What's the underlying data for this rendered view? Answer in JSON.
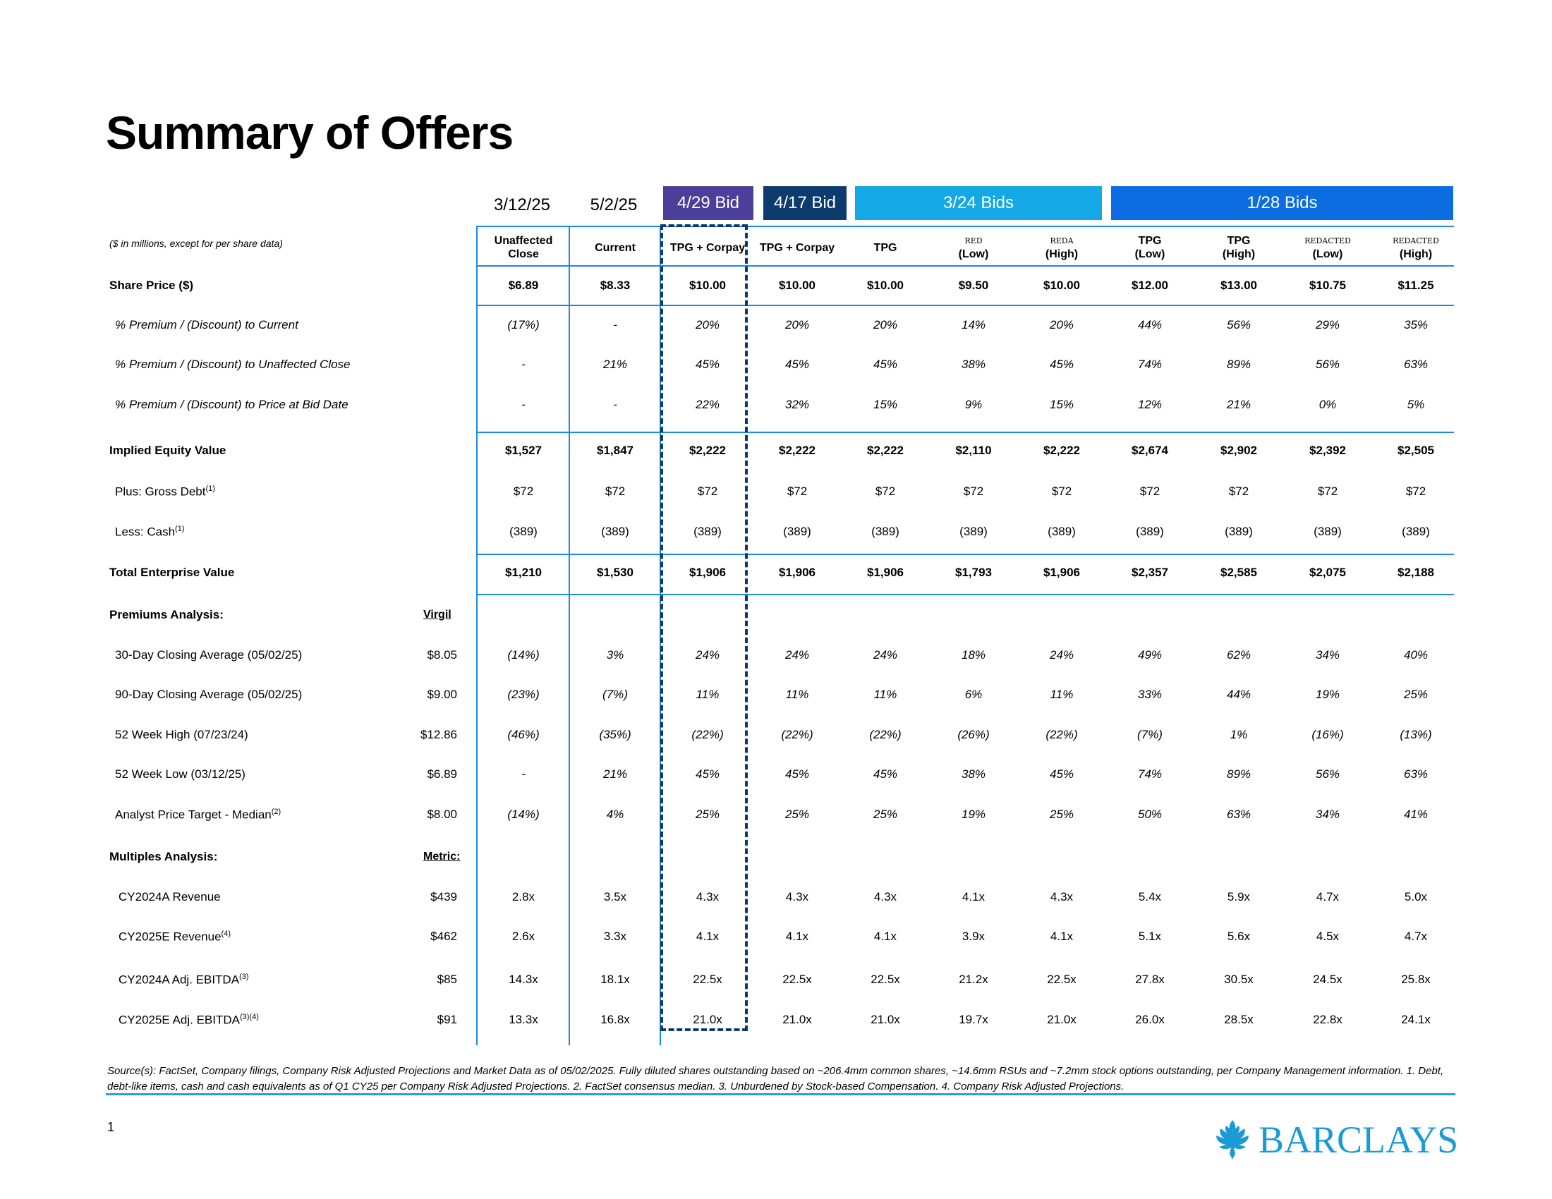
{
  "title": "Summary of Offers",
  "units_note": "($ in millions, except for per share data)",
  "header_groups": {
    "unaffected_date": "3/12/25",
    "current_date": "5/2/25",
    "bid_0429": "4/29 Bid",
    "bid_0417": "4/17 Bid",
    "bids_0324": "3/24 Bids",
    "bids_0128": "1/28 Bids"
  },
  "colors": {
    "bid_0429": "#4b3f9a",
    "bid_0417": "#0c3b6d",
    "bids_0324": "#14a8e6",
    "bids_0128": "#0c6de3",
    "rule": "#1a8be0",
    "brand": "#1b9ad6"
  },
  "columns": [
    {
      "line1": "Unaffected",
      "line2": "Close"
    },
    {
      "line1": "Current",
      "line2": ""
    },
    {
      "line1": "TPG + Corpay",
      "line2": ""
    },
    {
      "line1": "TPG + Corpay",
      "line2": ""
    },
    {
      "line1": "TPG",
      "line2": ""
    },
    {
      "line1": "RED",
      "line2": "(Low)"
    },
    {
      "line1": "REDA",
      "line2": "(High)"
    },
    {
      "line1": "TPG",
      "line2": "(Low)"
    },
    {
      "line1": "TPG",
      "line2": "(High)"
    },
    {
      "line1": "REDACTED",
      "line2": "(Low)"
    },
    {
      "line1": "REDACTED",
      "line2": "(High)"
    }
  ],
  "rows": {
    "share_price": {
      "label": "Share Price ($)",
      "values": [
        "$6.89",
        "$8.33",
        "$10.00",
        "$10.00",
        "$10.00",
        "$9.50",
        "$10.00",
        "$12.00",
        "$13.00",
        "$10.75",
        "$11.25"
      ]
    },
    "prem_current": {
      "label": "% Premium / (Discount) to Current",
      "values": [
        "(17%)",
        "-",
        "20%",
        "20%",
        "20%",
        "14%",
        "20%",
        "44%",
        "56%",
        "29%",
        "35%"
      ]
    },
    "prem_unaffected": {
      "label": "% Premium / (Discount) to Unaffected Close",
      "values": [
        "-",
        "21%",
        "45%",
        "45%",
        "45%",
        "38%",
        "45%",
        "74%",
        "89%",
        "56%",
        "63%"
      ]
    },
    "prem_bid_date": {
      "label": "% Premium / (Discount) to Price at Bid Date",
      "values": [
        "-",
        "-",
        "22%",
        "32%",
        "15%",
        "9%",
        "15%",
        "12%",
        "21%",
        "0%",
        "5%"
      ]
    },
    "equity_value": {
      "label": "Implied Equity Value",
      "values": [
        "$1,527",
        "$1,847",
        "$2,222",
        "$2,222",
        "$2,222",
        "$2,110",
        "$2,222",
        "$2,674",
        "$2,902",
        "$2,392",
        "$2,505"
      ]
    },
    "gross_debt": {
      "label": "Plus: Gross Debt",
      "sup": "(1)",
      "values": [
        "$72",
        "$72",
        "$72",
        "$72",
        "$72",
        "$72",
        "$72",
        "$72",
        "$72",
        "$72",
        "$72"
      ]
    },
    "cash": {
      "label": "Less: Cash",
      "sup": "(1)",
      "values": [
        "(389)",
        "(389)",
        "(389)",
        "(389)",
        "(389)",
        "(389)",
        "(389)",
        "(389)",
        "(389)",
        "(389)",
        "(389)"
      ]
    },
    "tev": {
      "label": "Total Enterprise Value",
      "values": [
        "$1,210",
        "$1,530",
        "$1,906",
        "$1,906",
        "$1,906",
        "$1,793",
        "$1,906",
        "$2,357",
        "$2,585",
        "$2,075",
        "$2,188"
      ]
    }
  },
  "premiums": {
    "label": "Premiums Analysis:",
    "metric_header": "Virgil",
    "rows": [
      {
        "label": "30-Day Closing Average (05/02/25)",
        "sup": "",
        "metric": "$8.05",
        "values": [
          "(14%)",
          "3%",
          "24%",
          "24%",
          "24%",
          "18%",
          "24%",
          "49%",
          "62%",
          "34%",
          "40%"
        ]
      },
      {
        "label": "90-Day Closing Average (05/02/25)",
        "sup": "",
        "metric": "$9.00",
        "values": [
          "(23%)",
          "(7%)",
          "11%",
          "11%",
          "11%",
          "6%",
          "11%",
          "33%",
          "44%",
          "19%",
          "25%"
        ]
      },
      {
        "label": "52 Week High (07/23/24)",
        "sup": "",
        "metric": "$12.86",
        "values": [
          "(46%)",
          "(35%)",
          "(22%)",
          "(22%)",
          "(22%)",
          "(26%)",
          "(22%)",
          "(7%)",
          "1%",
          "(16%)",
          "(13%)"
        ]
      },
      {
        "label": "52 Week Low (03/12/25)",
        "sup": "",
        "metric": "$6.89",
        "values": [
          "-",
          "21%",
          "45%",
          "45%",
          "45%",
          "38%",
          "45%",
          "74%",
          "89%",
          "56%",
          "63%"
        ]
      },
      {
        "label": "Analyst Price Target - Median",
        "sup": "(2)",
        "metric": "$8.00",
        "values": [
          "(14%)",
          "4%",
          "25%",
          "25%",
          "25%",
          "19%",
          "25%",
          "50%",
          "63%",
          "34%",
          "41%"
        ]
      }
    ]
  },
  "multiples": {
    "label": "Multiples Analysis:",
    "metric_header": "Metric:",
    "rows": [
      {
        "label": "CY2024A Revenue",
        "sup": "",
        "metric": "$439",
        "values": [
          "2.8x",
          "3.5x",
          "4.3x",
          "4.3x",
          "4.3x",
          "4.1x",
          "4.3x",
          "5.4x",
          "5.9x",
          "4.7x",
          "5.0x"
        ]
      },
      {
        "label": "CY2025E Revenue",
        "sup": "(4)",
        "metric": "$462",
        "values": [
          "2.6x",
          "3.3x",
          "4.1x",
          "4.1x",
          "4.1x",
          "3.9x",
          "4.1x",
          "5.1x",
          "5.6x",
          "4.5x",
          "4.7x"
        ]
      },
      {
        "label": "CY2024A Adj. EBITDA",
        "sup": "(3)",
        "metric": "$85",
        "values": [
          "14.3x",
          "18.1x",
          "22.5x",
          "22.5x",
          "22.5x",
          "21.2x",
          "22.5x",
          "27.8x",
          "30.5x",
          "24.5x",
          "25.8x"
        ]
      },
      {
        "label": "CY2025E Adj. EBITDA",
        "sup": "(3)(4)",
        "metric": "$91",
        "values": [
          "13.3x",
          "16.8x",
          "21.0x",
          "21.0x",
          "21.0x",
          "19.7x",
          "21.0x",
          "26.0x",
          "28.5x",
          "22.8x",
          "24.1x"
        ]
      }
    ]
  },
  "footnote": "Source(s): FactSet, Company filings, Company Risk Adjusted Projections and Market Data as of 05/02/2025. Fully diluted shares outstanding based on ~206.4mm common shares, ~14.6mm RSUs and ~7.2mm stock options outstanding, per Company Management information. 1. Debt, debt-like items, cash and cash equivalents as of Q1 CY25 per Company Risk Adjusted Projections. 2. FactSet consensus median. 3. Unburdened by Stock-based Compensation. 4. Company Risk Adjusted Projections.",
  "page_number": "1",
  "brand": "BARCLAYS",
  "brand_icon": "eagle-icon"
}
